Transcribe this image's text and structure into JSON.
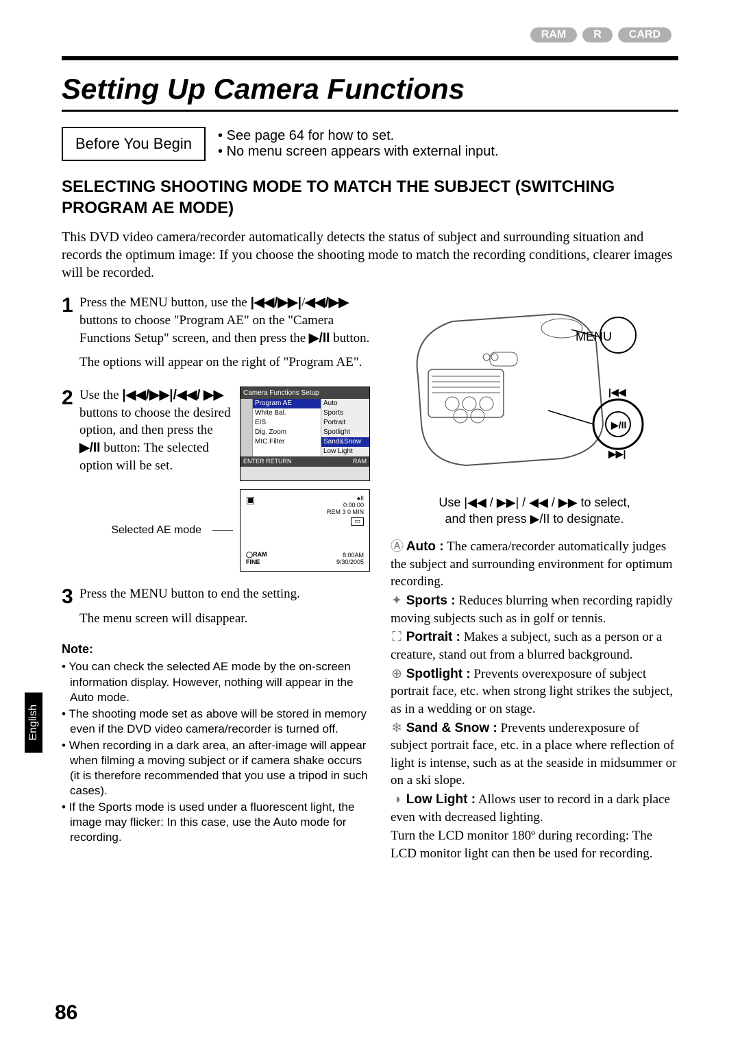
{
  "badges": [
    "RAM",
    "R",
    "CARD"
  ],
  "title": "Setting Up Camera Functions",
  "beforeBox": "Before You Begin",
  "beforeBullets": [
    "See page 64 for how to set.",
    "No menu screen appears with external input."
  ],
  "subhead": "SELECTING SHOOTING MODE TO MATCH THE SUBJECT (SWITCHING PROGRAM AE MODE)",
  "intro": "This DVD video camera/recorder automatically detects the status of subject and surrounding situation and records the optimum image: If you choose the shooting mode to match the recording conditions, clearer images will be recorded.",
  "step1": {
    "num": "1",
    "prefix": "Press the MENU button, use the ",
    "glyph1": "|◀◀/▶▶|",
    "mid": "/",
    "glyph2": "◀◀/▶▶",
    "cont": " buttons to choose \"Program AE\" on the \"Camera Functions Setup\" screen, and then press the ",
    "glyph3": "▶/II",
    "end": " button.",
    "p2": "The options will appear on the right of \"Program AE\"."
  },
  "step2": {
    "num": "2",
    "prefix": "Use the ",
    "glyph1": "|◀◀/▶▶|/◀◀/",
    "glyph2": "▶▶",
    "cont": " buttons to choose the desired option, and then press the ",
    "glyph3": "▶/II",
    "end": " button: The selected option will be set."
  },
  "selectedLabel": "Selected AE mode",
  "screen1": {
    "title": "Camera Functions Setup",
    "rows": [
      {
        "l": "Program AE",
        "r": "Auto",
        "selL": true
      },
      {
        "l": "White Bal.",
        "r": "Sports"
      },
      {
        "l": "EIS",
        "r": "Portrait"
      },
      {
        "l": "Dig. Zoom",
        "r": "Spotlight"
      },
      {
        "l": "MIC.Filter",
        "r": "Sand&Snow",
        "selR": true
      },
      {
        "l": "",
        "r": "Low Light"
      }
    ],
    "footL": "ENTER   RETURN",
    "footR": "RAM"
  },
  "screen2": {
    "topRight1": "0:00:00",
    "topRight2": "REM 3 0 MIN",
    "bl1": "RAM",
    "bl2": "FINE",
    "br1": "8:00AM",
    "br2": "9/30/2005"
  },
  "step3": {
    "num": "3",
    "p1": "Press the MENU button to end the setting.",
    "p2": "The menu screen will disappear."
  },
  "noteHead": "Note:",
  "notes": [
    "You can check the selected AE mode by the on-screen information display. However, nothing will appear in the Auto mode.",
    "The shooting mode set as above will be stored in memory even if the DVD video camera/recorder is turned off.",
    "When recording in a dark area, an after-image will appear when filming a moving subject or if camera shake occurs (it is therefore recommended that you use a tripod in such cases).",
    "If the Sports mode is used under a fluorescent light, the image may flicker: In this case, use the Auto mode for recording."
  ],
  "cam": {
    "menuLabel": "MENU",
    "caption1": "Use |◀◀ / ▶▶| / ◀◀ / ▶▶ to select,",
    "caption2": "and then press ▶/II to designate."
  },
  "modes": {
    "autoIcon": "Ⓐ",
    "autoLabel": "Auto :",
    "autoText": " The camera/recorder automatically judges the subject and surrounding environment for optimum recording.",
    "sportsIcon": "✦",
    "sportsLabel": "Sports :",
    "sportsText": " Reduces blurring when recording rapidly moving subjects such as in golf or tennis.",
    "portraitIcon": "⛶",
    "portraitLabel": "Portrait :",
    "portraitText": " Makes a subject, such as a person or a creature, stand out from a blurred background.",
    "spotIcon": "⊕",
    "spotLabel": "Spotlight :",
    "spotText": " Prevents overexposure of subject portrait face, etc. when strong light strikes the subject, as in a wedding or on stage.",
    "sandIcon": "❄",
    "sandLabel": "Sand & Snow :",
    "sandText": " Prevents underexposure of subject portrait face, etc. in a place where reflection of light is intense, such as at the seaside in midsummer or on a ski slope.",
    "lowIcon": "◑",
    "lowLabel": "Low Light :",
    "lowText": " Allows user to record in a dark place even with decreased lighting.",
    "lowText2": "Turn the LCD monitor 180º during recording: The LCD monitor light can then be used for recording."
  },
  "sideTab": "English",
  "pageNum": "86",
  "btnGlyphs": {
    "prev": "|◀◀",
    "next": "▶▶|",
    "play": "▶/II"
  }
}
